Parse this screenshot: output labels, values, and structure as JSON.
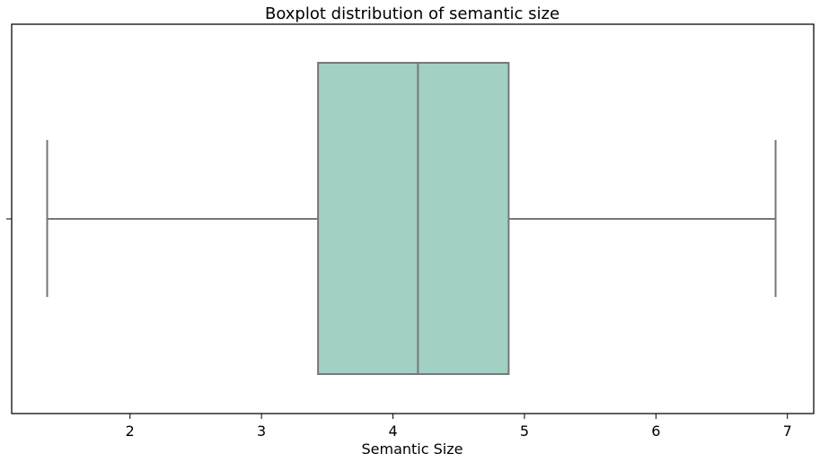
{
  "chart_data": {
    "type": "boxplot",
    "title": "Boxplot distribution of semantic size",
    "xlabel": "Semantic Size",
    "ylabel": "",
    "orientation": "horizontal",
    "xlim": [
      1.1,
      7.2
    ],
    "x_ticks": [
      2,
      3,
      4,
      5,
      6,
      7
    ],
    "x_tick_labels": [
      "2",
      "3",
      "4",
      "5",
      "6",
      "7"
    ],
    "grid": false,
    "legend": "none",
    "series": [
      {
        "min": 1.37,
        "q1": 3.43,
        "median": 4.19,
        "q3": 4.88,
        "max": 6.91
      }
    ],
    "colors": {
      "box_fill": "#a2d0c4",
      "line": "#777777",
      "frame": "#000000"
    }
  }
}
